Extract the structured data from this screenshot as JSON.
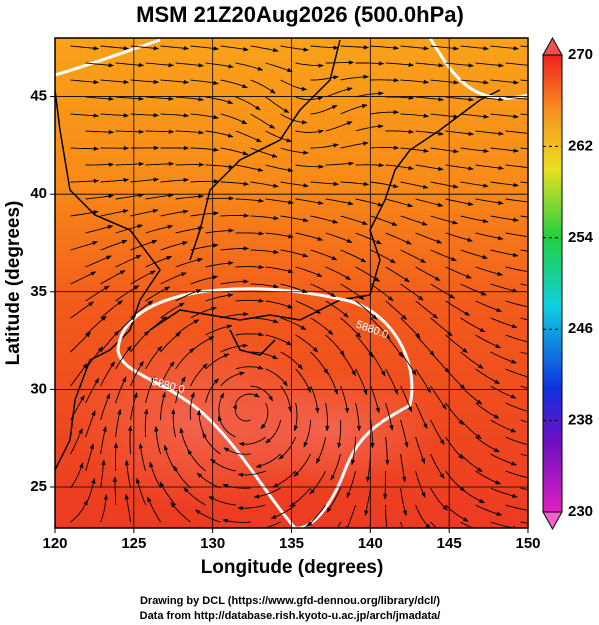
{
  "chart_data": {
    "type": "map",
    "title": "MSM 21Z20Aug2026 (500.0hPa)",
    "x_label": "Longitude (degrees)",
    "y_label": "Latitude  (degrees)",
    "xlim": [
      120,
      150
    ],
    "ylim": [
      22.9,
      48
    ],
    "xticks": [
      120,
      125,
      130,
      135,
      140,
      145,
      150
    ],
    "yticks": [
      25,
      30,
      35,
      40,
      45
    ],
    "grid": true,
    "clim": [
      230,
      270
    ],
    "cticks": [
      230,
      238,
      246,
      254,
      262,
      270
    ],
    "contour_labels": [
      "5880.0",
      "5880.0"
    ],
    "credits": [
      "Drawing by DCL (https://www.gfd-dennou.org/library/dcl/)",
      "Data from http://database.rish.kyoto-u.ac.jp/arch/jmadata/"
    ]
  }
}
